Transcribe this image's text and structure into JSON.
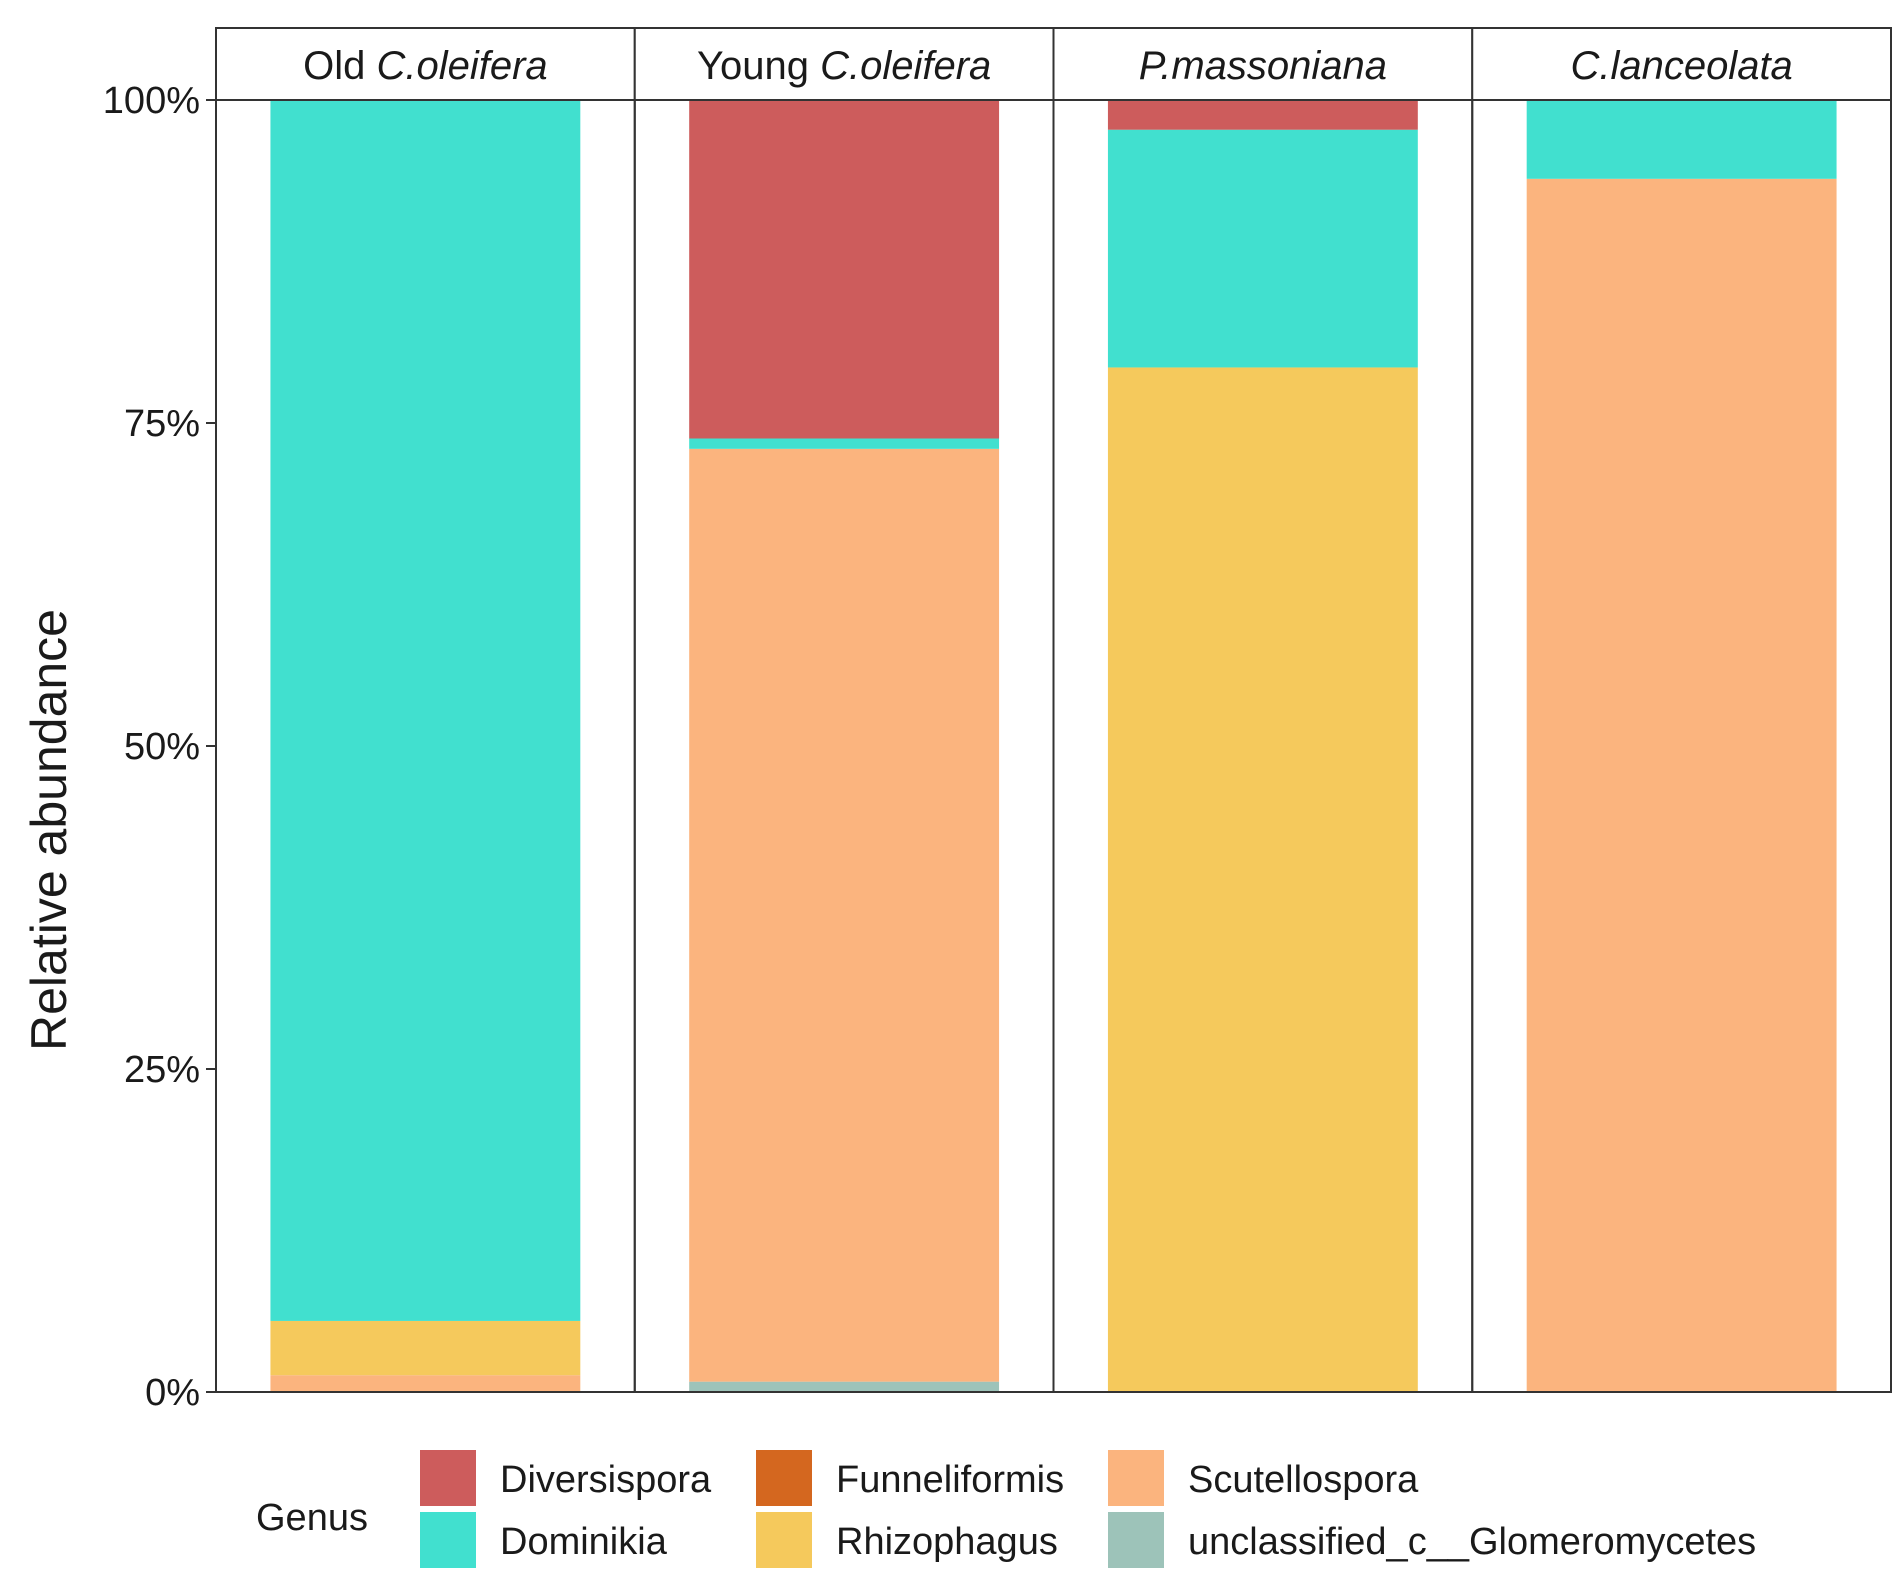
{
  "chart_data": {
    "type": "bar",
    "stacked": true,
    "facets": [
      {
        "prefix": "Old ",
        "name": "C.oleifera"
      },
      {
        "prefix": "Young ",
        "name": "C.oleifera"
      },
      {
        "prefix": "",
        "name": "P.massoniana"
      },
      {
        "prefix": "",
        "name": "C.lanceolata"
      }
    ],
    "ylabel": "Relative abundance",
    "ylim": [
      0,
      100
    ],
    "yticks": [
      0,
      25,
      50,
      75,
      100
    ],
    "ytick_labels": [
      "0%",
      "25%",
      "50%",
      "75%",
      "100%"
    ],
    "legend": {
      "title": "Genus",
      "position": "bottom"
    },
    "series": [
      {
        "name": "unclassified_c__Glomeromycetes",
        "color": "#9dc3b9",
        "values": [
          0,
          0.8,
          0,
          0
        ]
      },
      {
        "name": "Scutellospora",
        "color": "#fbb47e",
        "values": [
          1.3,
          72.2,
          0,
          93.9
        ]
      },
      {
        "name": "Rhizophagus",
        "color": "#f5c95c",
        "values": [
          4.2,
          0,
          79.3,
          0
        ]
      },
      {
        "name": "Funneliformis",
        "color": "#d4671f",
        "values": [
          0,
          0,
          0,
          0
        ]
      },
      {
        "name": "Dominikia",
        "color": "#41e0cf",
        "values": [
          94.5,
          0.8,
          18.4,
          6.1
        ]
      },
      {
        "name": "Diversispora",
        "color": "#cd5c5c",
        "values": [
          0,
          26.2,
          2.3,
          0
        ]
      }
    ],
    "legend_order": [
      "Diversispora",
      "Dominikia",
      "Funneliformis",
      "Rhizophagus",
      "Scutellospora",
      "unclassified_c__Glomeromycetes"
    ]
  }
}
